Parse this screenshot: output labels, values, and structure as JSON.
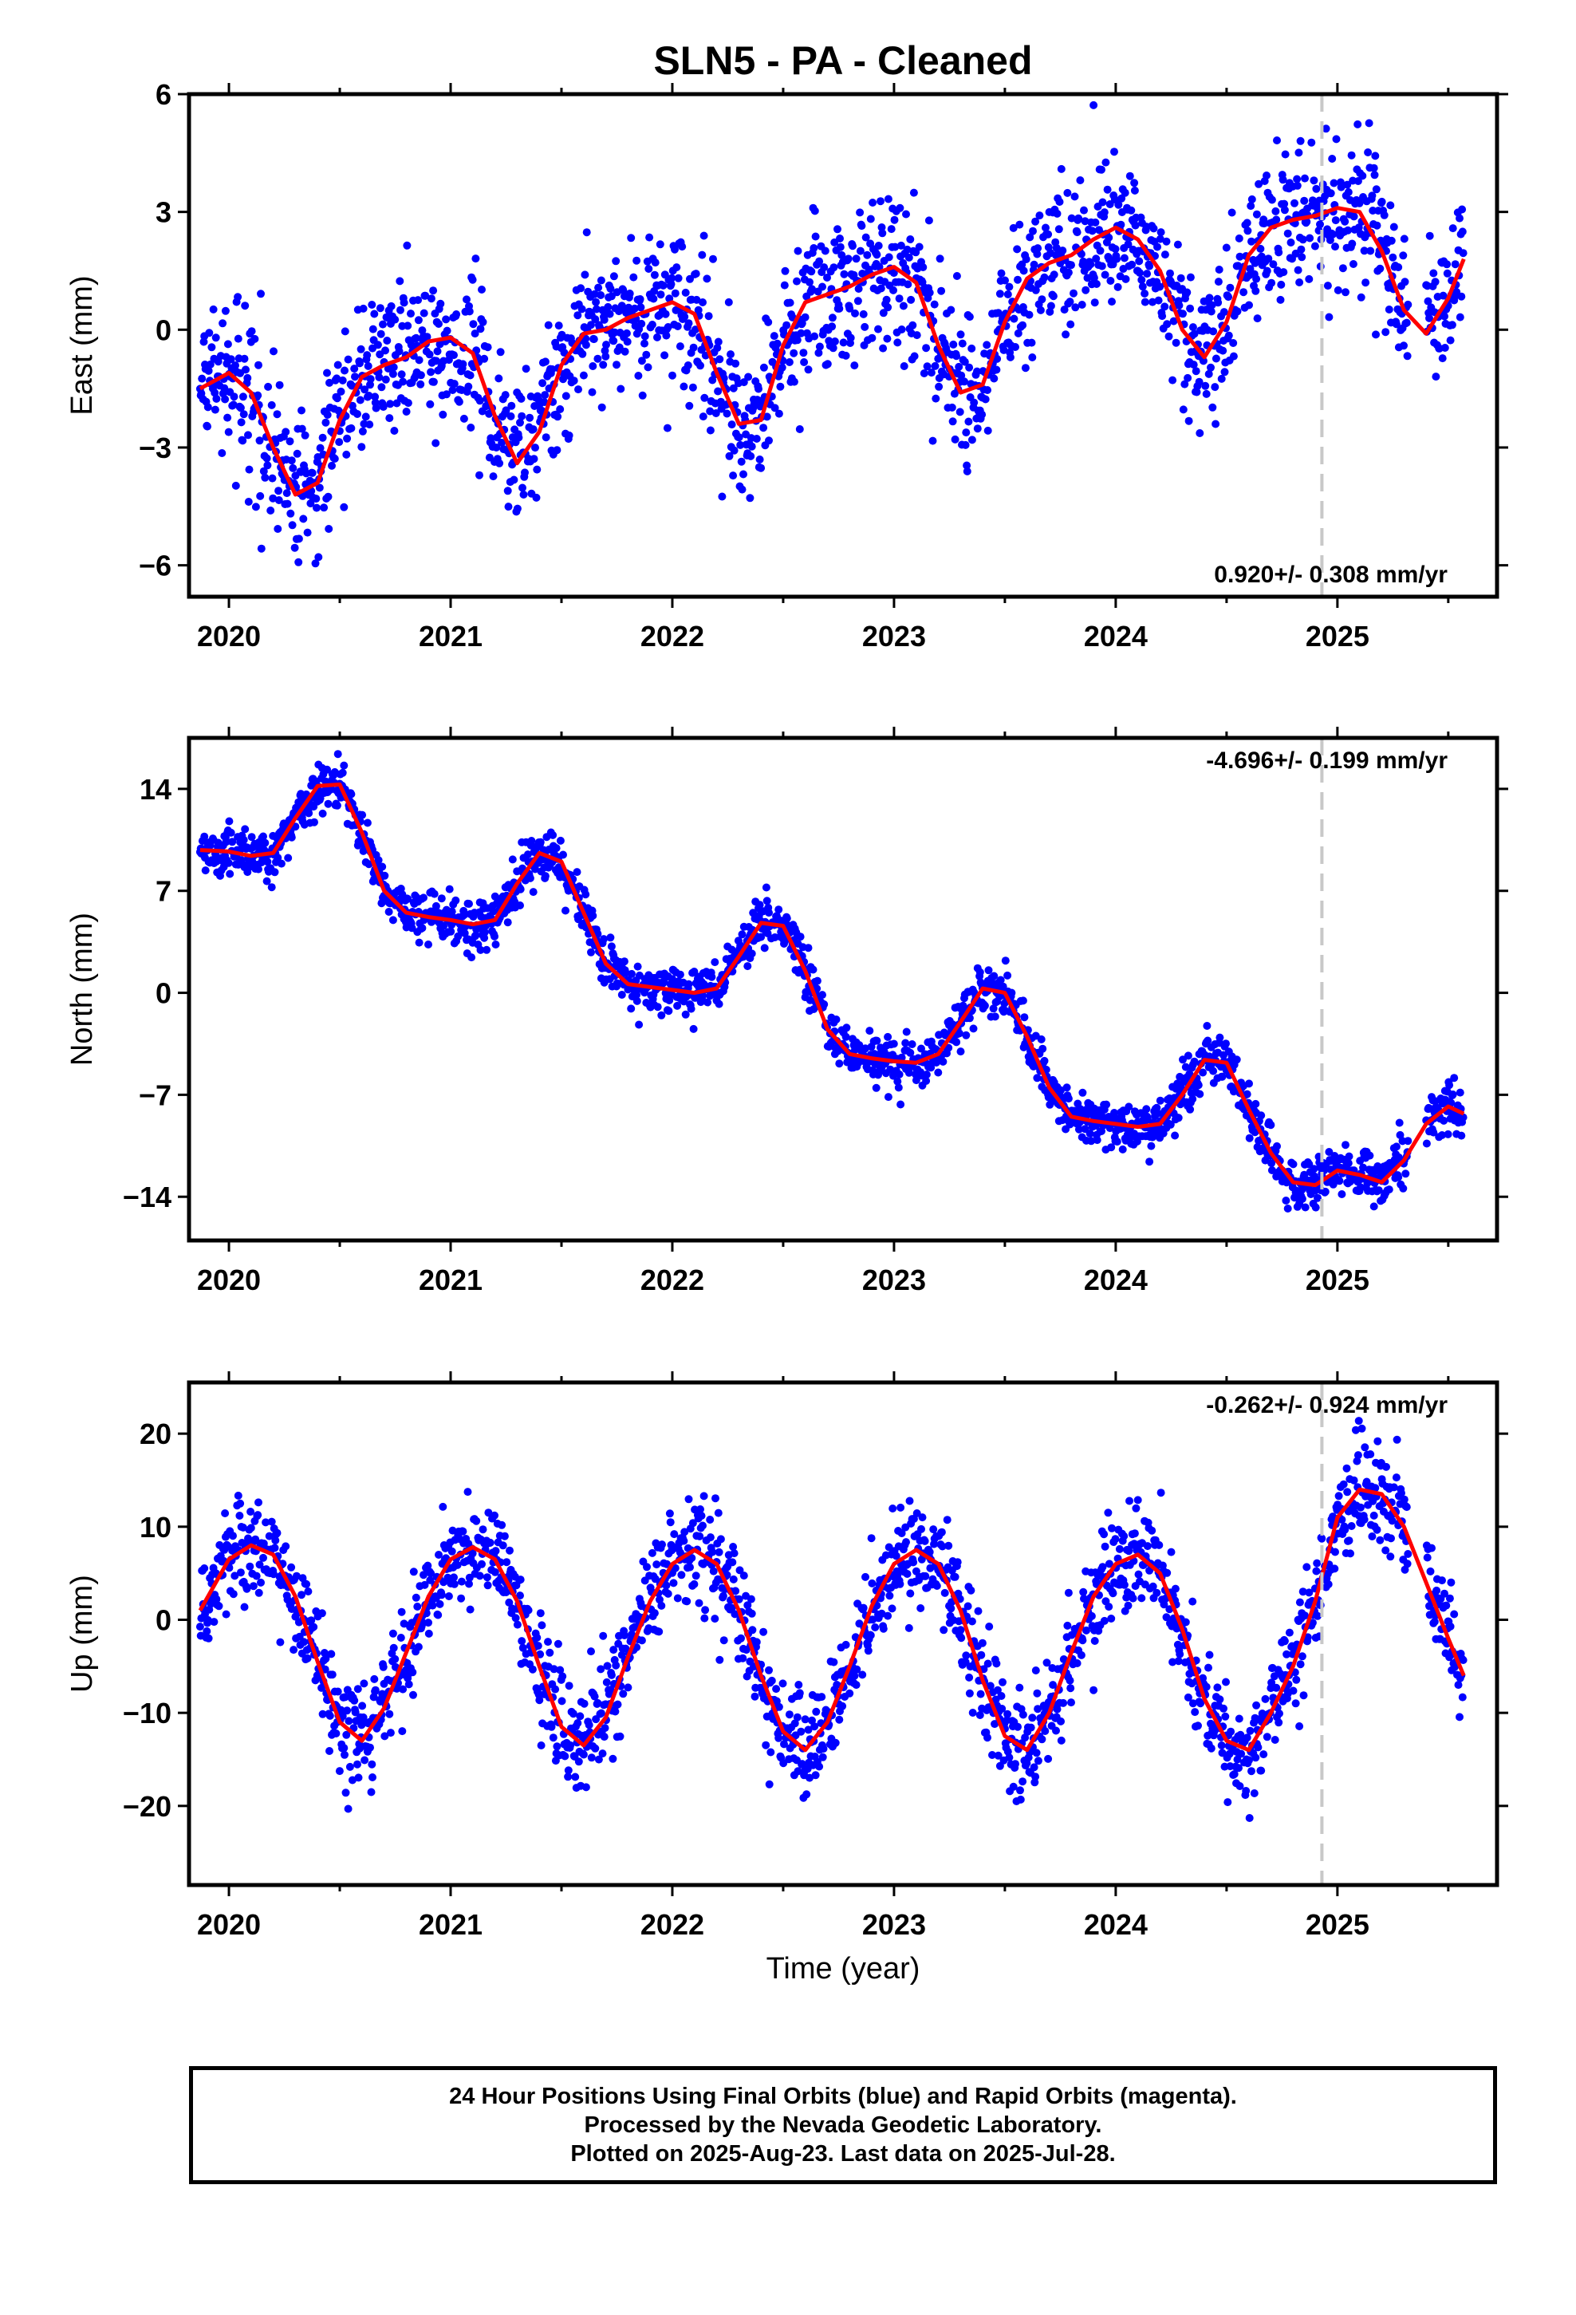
{
  "figure": {
    "title": "SLN5  - PA - Cleaned",
    "xlabel": "Time (year)",
    "footer": [
      "24 Hour Positions Using Final Orbits (blue) and Rapid Orbits (magenta).",
      "Processed by the Nevada Geodetic Laboratory.",
      "Plotted on 2025-Aug-23. Last data on 2025-Jul-28."
    ],
    "colors": {
      "points": "#0000ff",
      "model": "#ff0000",
      "marker_line": "#c8c8c8",
      "axes": "#000000"
    }
  },
  "chart_data": [
    {
      "type": "scatter",
      "component": "East",
      "ylabel": "East (mm)",
      "x_range": [
        2019.82,
        2025.72
      ],
      "ylim": [
        -6.8,
        6.0
      ],
      "yticks": [
        -6,
        -3,
        0,
        3,
        6
      ],
      "xticks": [
        2020,
        2021,
        2022,
        2023,
        2024,
        2025
      ],
      "rate_label": "0.920+/- 0.308 mm/yr",
      "rate_position": "bottom-right",
      "vertical_marker": 2024.93,
      "data_span": [
        2019.87,
        2025.57
      ],
      "model_curve": {
        "x": [
          2019.87,
          2020.0,
          2020.1,
          2020.2,
          2020.3,
          2020.4,
          2020.5,
          2020.6,
          2020.7,
          2020.8,
          2020.9,
          2021.0,
          2021.1,
          2021.2,
          2021.3,
          2021.4,
          2021.5,
          2021.6,
          2021.7,
          2021.8,
          2021.9,
          2022.0,
          2022.1,
          2022.2,
          2022.3,
          2022.4,
          2022.5,
          2022.6,
          2022.7,
          2022.8,
          2022.9,
          2023.0,
          2023.1,
          2023.2,
          2023.3,
          2023.4,
          2023.5,
          2023.6,
          2023.7,
          2023.8,
          2023.9,
          2024.0,
          2024.1,
          2024.2,
          2024.3,
          2024.4,
          2024.5,
          2024.6,
          2024.7,
          2024.8,
          2024.9,
          2025.0,
          2025.1,
          2025.2,
          2025.3,
          2025.4,
          2025.5,
          2025.57
        ],
        "y": [
          -1.5,
          -1.1,
          -1.6,
          -3.0,
          -4.2,
          -3.9,
          -2.3,
          -1.2,
          -0.9,
          -0.7,
          -0.3,
          -0.2,
          -0.6,
          -2.2,
          -3.4,
          -2.6,
          -0.9,
          -0.1,
          0.0,
          0.3,
          0.5,
          0.7,
          0.4,
          -1.1,
          -2.4,
          -2.3,
          -0.4,
          0.7,
          0.9,
          1.1,
          1.4,
          1.6,
          1.2,
          -0.4,
          -1.6,
          -1.4,
          0.2,
          1.3,
          1.7,
          1.9,
          2.3,
          2.6,
          2.3,
          1.5,
          0.0,
          -0.7,
          0.2,
          1.9,
          2.6,
          2.8,
          2.9,
          3.1,
          3.0,
          2.0,
          0.5,
          -0.1,
          0.8,
          1.8
        ]
      }
    },
    {
      "type": "scatter",
      "component": "North",
      "ylabel": "North (mm)",
      "x_range": [
        2019.82,
        2025.72
      ],
      "ylim": [
        -17.0,
        17.5
      ],
      "yticks": [
        -14,
        -7,
        0,
        7,
        14
      ],
      "xticks": [
        2020,
        2021,
        2022,
        2023,
        2024,
        2025
      ],
      "rate_label": "-4.696+/- 0.199 mm/yr",
      "rate_position": "top-right",
      "vertical_marker": 2024.93,
      "data_span": [
        2019.87,
        2025.57
      ],
      "model_curve": {
        "x": [
          2019.87,
          2020.0,
          2020.1,
          2020.2,
          2020.3,
          2020.4,
          2020.5,
          2020.6,
          2020.7,
          2020.8,
          2020.9,
          2021.0,
          2021.1,
          2021.2,
          2021.3,
          2021.4,
          2021.5,
          2021.6,
          2021.7,
          2021.8,
          2021.9,
          2022.0,
          2022.1,
          2022.2,
          2022.3,
          2022.4,
          2022.5,
          2022.6,
          2022.7,
          2022.8,
          2022.9,
          2023.0,
          2023.1,
          2023.2,
          2023.3,
          2023.4,
          2023.5,
          2023.6,
          2023.7,
          2023.8,
          2023.9,
          2024.0,
          2024.1,
          2024.2,
          2024.3,
          2024.4,
          2024.5,
          2024.6,
          2024.7,
          2024.8,
          2024.9,
          2025.0,
          2025.1,
          2025.2,
          2025.3,
          2025.4,
          2025.5,
          2025.57
        ],
        "y": [
          9.8,
          9.7,
          9.4,
          9.6,
          12.0,
          14.2,
          14.3,
          11.0,
          7.0,
          5.5,
          5.2,
          5.0,
          4.7,
          5.0,
          7.5,
          9.6,
          9.0,
          5.5,
          2.0,
          0.6,
          0.4,
          0.2,
          0.0,
          0.3,
          2.5,
          4.8,
          4.6,
          1.5,
          -2.5,
          -4.2,
          -4.5,
          -4.7,
          -4.8,
          -4.2,
          -2.0,
          0.3,
          0.0,
          -3.0,
          -6.5,
          -8.5,
          -8.8,
          -9.0,
          -9.2,
          -9.0,
          -7.0,
          -4.6,
          -4.8,
          -8.0,
          -11.0,
          -13.0,
          -13.2,
          -12.2,
          -12.5,
          -13.0,
          -11.5,
          -9.0,
          -7.8,
          -8.3
        ]
      }
    },
    {
      "type": "scatter",
      "component": "Up",
      "ylabel": "Up (mm)",
      "x_range": [
        2019.82,
        2025.72
      ],
      "ylim": [
        -28.5,
        25.5
      ],
      "yticks": [
        -20,
        -10,
        0,
        10,
        20
      ],
      "xticks": [
        2020,
        2021,
        2022,
        2023,
        2024,
        2025
      ],
      "rate_label": "-0.262+/- 0.924 mm/yr",
      "rate_position": "top-right",
      "vertical_marker": 2024.93,
      "data_span": [
        2019.87,
        2025.57
      ],
      "model_curve": {
        "x": [
          2019.87,
          2020.0,
          2020.1,
          2020.2,
          2020.3,
          2020.4,
          2020.5,
          2020.6,
          2020.7,
          2020.8,
          2020.9,
          2021.0,
          2021.1,
          2021.2,
          2021.3,
          2021.4,
          2021.5,
          2021.6,
          2021.7,
          2021.8,
          2021.9,
          2022.0,
          2022.1,
          2022.2,
          2022.3,
          2022.4,
          2022.5,
          2022.6,
          2022.7,
          2022.8,
          2022.9,
          2023.0,
          2023.1,
          2023.2,
          2023.3,
          2023.4,
          2023.5,
          2023.6,
          2023.7,
          2023.8,
          2023.9,
          2024.0,
          2024.1,
          2024.2,
          2024.3,
          2024.4,
          2024.5,
          2024.6,
          2024.7,
          2024.8,
          2024.9,
          2025.0,
          2025.1,
          2025.2,
          2025.3,
          2025.4,
          2025.5,
          2025.57
        ],
        "y": [
          1.0,
          6.5,
          8.0,
          7.0,
          2.5,
          -4.5,
          -11.0,
          -13.0,
          -9.5,
          -3.5,
          2.5,
          6.5,
          7.8,
          6.5,
          2.0,
          -5.0,
          -11.5,
          -13.5,
          -10.5,
          -4.0,
          2.0,
          6.0,
          7.5,
          6.0,
          1.0,
          -6.0,
          -12.0,
          -14.0,
          -11.0,
          -5.0,
          1.5,
          6.0,
          7.5,
          6.0,
          1.0,
          -6.5,
          -12.5,
          -14.0,
          -10.0,
          -3.5,
          2.5,
          6.0,
          7.0,
          5.0,
          -1.0,
          -8.5,
          -13.0,
          -14.0,
          -10.0,
          -5.0,
          2.0,
          11.0,
          14.0,
          13.5,
          10.0,
          4.0,
          -2.0,
          -6.0
        ]
      }
    }
  ]
}
